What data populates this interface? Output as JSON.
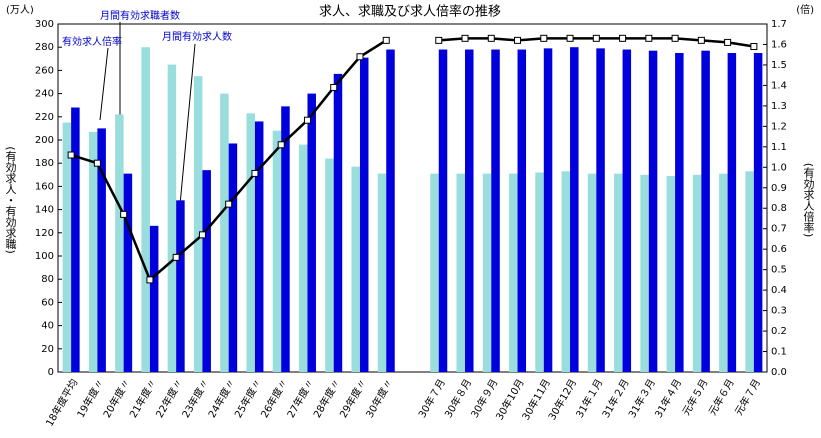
{
  "chart_data": {
    "type": "bar",
    "title": "求人、求職及び求人倍率の推移",
    "y_unit": "(万人)",
    "y2_unit": "(倍)",
    "y_label": "(有効求人・有効求職)",
    "y2_label": "(有効求人倍率)",
    "categories": [
      "18年度平均",
      "19年度〃",
      "20年度〃",
      "21年度〃",
      "22年度〃",
      "23年度〃",
      "24年度〃",
      "25年度〃",
      "26年度〃",
      "27年度〃",
      "28年度〃",
      "29年度〃",
      "30年度〃",
      null,
      "30年７月",
      "30年８月",
      "30年９月",
      "30年10月",
      "30年11月",
      "30年12月",
      "31年１月",
      "31年２月",
      "31年３月",
      "31年４月",
      "元年５月",
      "元年６月",
      "元年７月"
    ],
    "series": [
      {
        "name": "月間有効求職者数",
        "color": "#99dddd",
        "values": [
          215,
          207,
          222,
          280,
          265,
          255,
          240,
          223,
          208,
          196,
          184,
          177,
          171,
          null,
          171,
          171,
          171,
          171,
          172,
          173,
          171,
          171,
          170,
          169,
          170,
          171,
          173
        ]
      },
      {
        "name": "月間有効求人数",
        "color": "#0000dd",
        "values": [
          228,
          210,
          171,
          126,
          148,
          174,
          197,
          216,
          229,
          240,
          257,
          271,
          278,
          null,
          278,
          278,
          278,
          278,
          279,
          280,
          279,
          278,
          277,
          275,
          277,
          275,
          275
        ]
      },
      {
        "name": "有効求人倍率",
        "color": "#000000",
        "type": "line",
        "axis": "y2",
        "values": [
          1.06,
          1.02,
          0.77,
          0.45,
          0.56,
          0.67,
          0.82,
          0.97,
          1.11,
          1.23,
          1.39,
          1.54,
          1.62,
          null,
          1.62,
          1.63,
          1.63,
          1.62,
          1.63,
          1.63,
          1.63,
          1.63,
          1.63,
          1.63,
          1.62,
          1.61,
          1.59
        ]
      }
    ],
    "ylim": [
      0,
      300
    ],
    "yticks": [
      0,
      20,
      40,
      60,
      80,
      100,
      120,
      140,
      160,
      180,
      200,
      220,
      240,
      260,
      280,
      300
    ],
    "y2lim": [
      0,
      1.7
    ],
    "y2ticks": [
      {
        "value": 0,
        "label": "0.0"
      },
      0.1,
      0.2,
      0.3,
      0.4,
      0.5,
      0.6,
      0.7,
      0.8,
      0.9,
      {
        "value": 1,
        "label": "1.0"
      },
      1.1,
      1.2,
      1.3,
      1.4,
      1.5,
      1.6,
      1.7
    ],
    "grid": false
  }
}
